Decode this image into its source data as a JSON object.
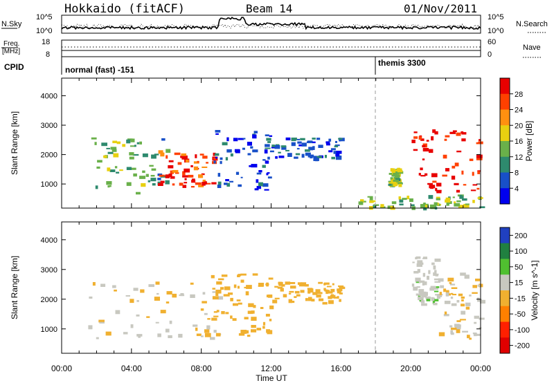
{
  "header": {
    "title": "Hokkaido (fitACF)",
    "beam": "Beam 14",
    "date": "01/Nov/2011"
  },
  "noise_panel": {
    "left_label": "N.Sky",
    "right_label": "N.Search",
    "left_ticks": [
      "10^5",
      "10^0"
    ],
    "right_ticks": [
      "10^5",
      "10^0"
    ]
  },
  "freq_panel": {
    "left_label_1": "Freq.",
    "left_label_2": "[MHz]",
    "right_label": "Nave",
    "left_ticks": [
      "18",
      "8"
    ],
    "right_ticks": [
      "60",
      "0"
    ]
  },
  "cpid": {
    "label": "CPID",
    "modes": [
      {
        "text": "normal (fast) -151",
        "start_hour": 0
      },
      {
        "text": "themis 3300",
        "start_hour": 18
      }
    ]
  },
  "chart_data": [
    {
      "type": "heatmap",
      "quantity": "Power",
      "x_range_hours": [
        0,
        24
      ],
      "y_range_km": [
        180,
        4600
      ],
      "ylabel": "Slant Range [km]",
      "yticks": [
        "1000",
        "2000",
        "3000",
        "4000"
      ],
      "colorbar": {
        "title": "Power [dB]",
        "ticks": [
          "4",
          "8",
          "12",
          "16",
          "20",
          "24",
          "28"
        ],
        "range": [
          0,
          30
        ],
        "colors": [
          "#0000ee",
          "#1850c8",
          "#2e8a6e",
          "#6ab04a",
          "#e8d010",
          "#ff9010",
          "#ff4000",
          "#e80000"
        ]
      },
      "regions": [
        {
          "t0": 1.5,
          "t1": 6.0,
          "r0": 700,
          "r1": 2600,
          "level": 12
        },
        {
          "t0": 5.5,
          "t1": 8.7,
          "r0": 900,
          "r1": 2200,
          "level": 26
        },
        {
          "t0": 8.7,
          "t1": 12.0,
          "r0": 800,
          "r1": 2900,
          "level": 5
        },
        {
          "t0": 12.0,
          "t1": 16.0,
          "r0": 1900,
          "r1": 2600,
          "level": 6
        },
        {
          "t0": 18.7,
          "t1": 19.3,
          "r0": 1000,
          "r1": 1600,
          "level": 14
        },
        {
          "t0": 20.0,
          "t1": 24.0,
          "r0": 700,
          "r1": 2900,
          "level": 28
        },
        {
          "t0": 17.0,
          "t1": 24.0,
          "r0": 200,
          "r1": 650,
          "level": 14
        }
      ]
    },
    {
      "type": "heatmap",
      "quantity": "Velocity",
      "x_range_hours": [
        0,
        24
      ],
      "y_range_km": [
        180,
        4600
      ],
      "xlabel": "Time UT",
      "ylabel": "Slant Range [km]",
      "xticks": [
        "00:00",
        "04:00",
        "08:00",
        "12:00",
        "16:00",
        "20:00",
        "00:00"
      ],
      "yticks": [
        "1000",
        "2000",
        "3000",
        "4000"
      ],
      "colorbar": {
        "title": "Velocity [m s^-1]",
        "ticks": [
          "200",
          "100",
          "50",
          "15",
          "-15",
          "-50",
          "-100",
          "-200"
        ],
        "range": [
          -250,
          250
        ],
        "colors": [
          "#2040c0",
          "#208040",
          "#50c030",
          "#c8c8c0",
          "#f0b030",
          "#ff8000",
          "#ff2000",
          "#e00000"
        ]
      },
      "regions": [
        {
          "t0": 1.5,
          "t1": 9.0,
          "r0": 700,
          "r1": 2600,
          "level": 0
        },
        {
          "t0": 8.5,
          "t1": 12.0,
          "r0": 800,
          "r1": 2900,
          "level": -30
        },
        {
          "t0": 12.0,
          "t1": 16.0,
          "r0": 1900,
          "r1": 2600,
          "level": -30
        },
        {
          "t0": 20.0,
          "t1": 21.5,
          "r0": 1800,
          "r1": 3500,
          "level": 40
        },
        {
          "t0": 21.5,
          "t1": 24.0,
          "r0": 700,
          "r1": 2900,
          "level": 0
        }
      ]
    }
  ]
}
